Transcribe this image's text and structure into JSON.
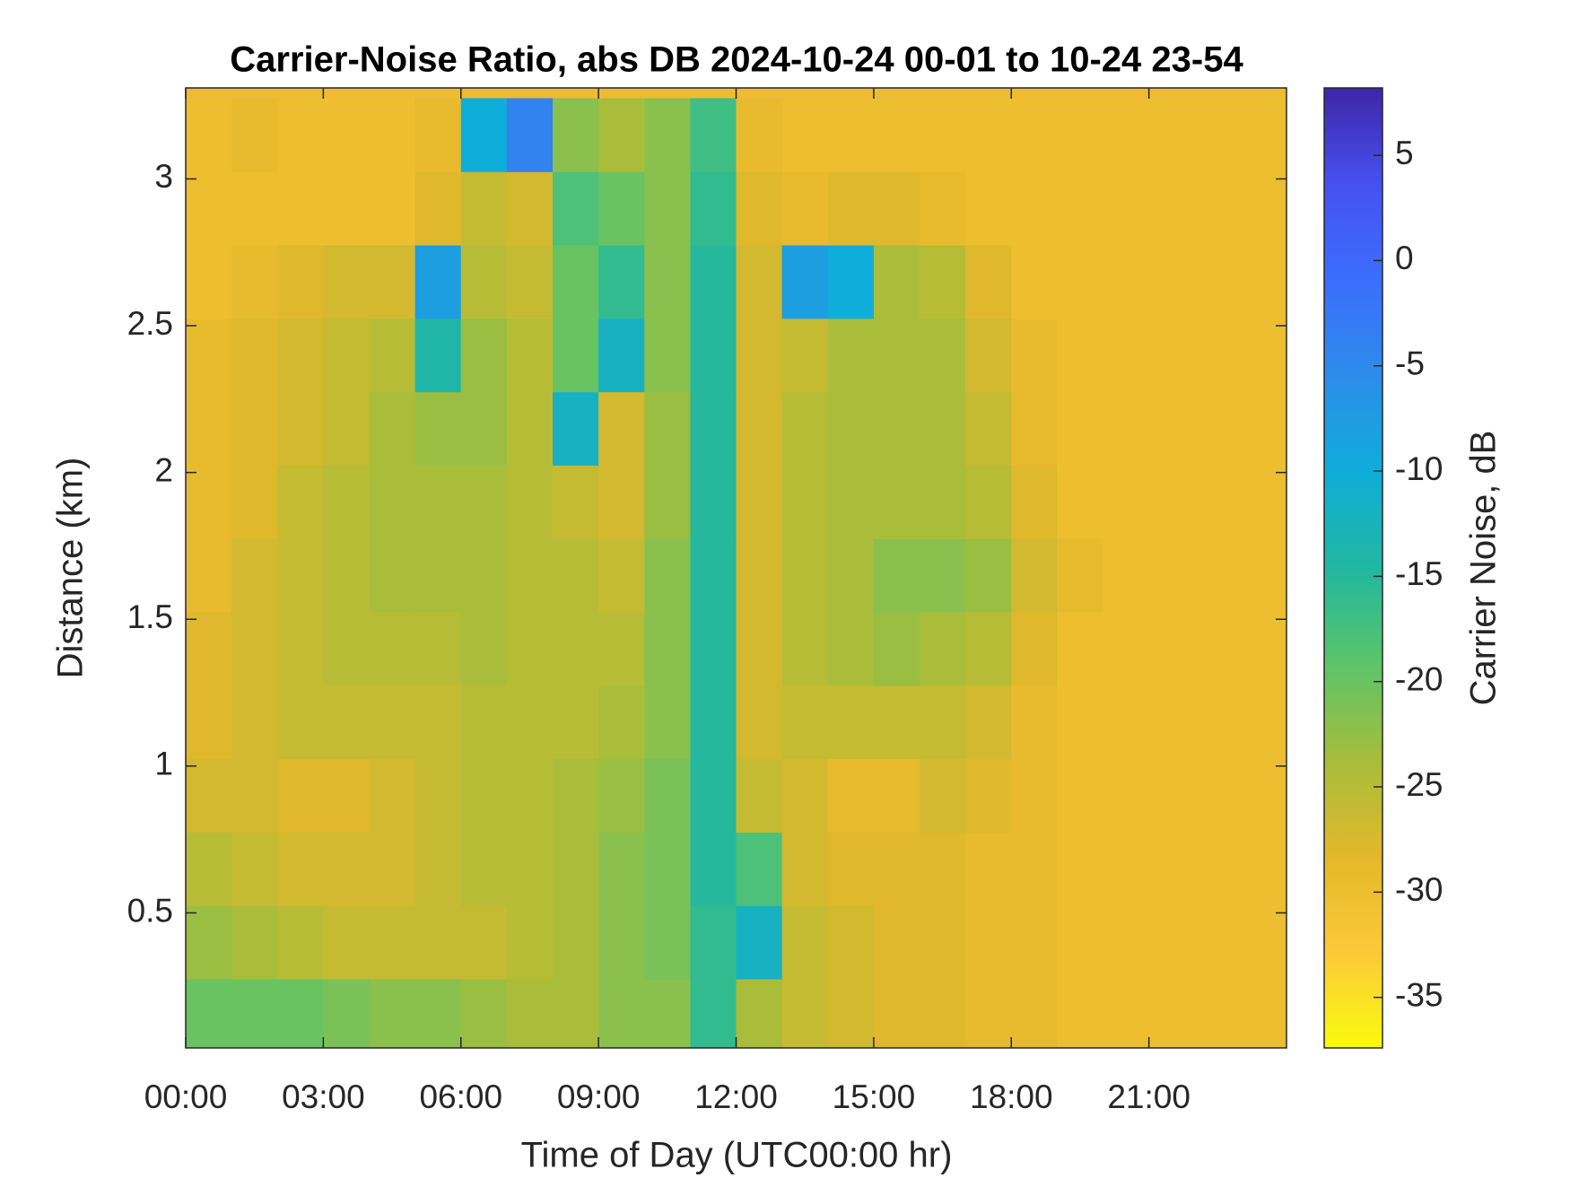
{
  "chart_data": {
    "type": "heatmap",
    "title": "Carrier-Noise Ratio, abs DB 2024-10-24 00-01 to 10-24 23-54",
    "x_label": "Time of Day (UTC00:00 hr)",
    "y_label": "Distance (km)",
    "colorbar_label": "Carrier Noise, dB",
    "x": [
      0.5,
      1.5,
      2.5,
      3.5,
      4.5,
      5.5,
      6.5,
      7.5,
      8.5,
      9.5,
      10.5,
      11.5,
      12.5,
      13.5,
      14.5,
      15.5,
      16.5,
      17.5,
      18.5,
      19.5,
      20.5,
      21.5,
      22.5,
      23.5
    ],
    "y": [
      0.15,
      0.4,
      0.65,
      0.9,
      1.15,
      1.4,
      1.65,
      1.9,
      2.15,
      2.4,
      2.65,
      2.9,
      3.15
    ],
    "z": [
      [
        -20,
        -20,
        -20,
        -21,
        -22,
        -22,
        -23,
        -24,
        -24,
        -22,
        -22,
        -16,
        -24,
        -26,
        -27,
        -28,
        -28,
        -29,
        -29,
        -30,
        -30,
        -30,
        -30,
        -30
      ],
      [
        -23,
        -24,
        -25,
        -26,
        -26,
        -26,
        -26,
        -25,
        -24,
        -22,
        -21,
        -16,
        -12,
        -26,
        -27,
        -28,
        -28,
        -29,
        -29,
        -30,
        -30,
        -30,
        -30,
        -30
      ],
      [
        -25,
        -26,
        -27,
        -27,
        -27,
        -26,
        -25,
        -25,
        -24,
        -22,
        -21,
        -15,
        -18,
        -27,
        -28,
        -28,
        -28,
        -29,
        -29,
        -30,
        -30,
        -30,
        -30,
        -30
      ],
      [
        -27,
        -27,
        -28,
        -28,
        -27,
        -26,
        -25,
        -25,
        -24,
        -23,
        -21,
        -15,
        -26,
        -27,
        -29,
        -29,
        -27,
        -28,
        -29,
        -30,
        -30,
        -30,
        -30,
        -30
      ],
      [
        -28,
        -27,
        -26,
        -26,
        -26,
        -26,
        -25,
        -25,
        -25,
        -24,
        -22,
        -15,
        -27,
        -26,
        -26,
        -26,
        -26,
        -27,
        -29,
        -30,
        -30,
        -30,
        -30,
        -30
      ],
      [
        -28,
        -27,
        -26,
        -25,
        -25,
        -25,
        -24,
        -25,
        -25,
        -25,
        -22,
        -15,
        -27,
        -25,
        -24,
        -23,
        -24,
        -25,
        -28,
        -30,
        -30,
        -30,
        -30,
        -30
      ],
      [
        -29,
        -27,
        -26,
        -25,
        -24,
        -24,
        -24,
        -25,
        -25,
        -26,
        -22,
        -15,
        -27,
        -25,
        -24,
        -22,
        -22,
        -23,
        -27,
        -29,
        -30,
        -30,
        -30,
        -30
      ],
      [
        -29,
        -28,
        -26,
        -25,
        -24,
        -24,
        -24,
        -25,
        -26,
        -27,
        -23,
        -15,
        -27,
        -25,
        -24,
        -24,
        -24,
        -25,
        -28,
        -30,
        -30,
        -30,
        -30,
        -30
      ],
      [
        -29,
        -28,
        -27,
        -26,
        -24,
        -23,
        -23,
        -25,
        -12,
        -27,
        -23,
        -15,
        -27,
        -25,
        -24,
        -24,
        -24,
        -26,
        -29,
        -30,
        -30,
        -30,
        -30,
        -30
      ],
      [
        -29,
        -28,
        -27,
        -26,
        -25,
        -14,
        -23,
        -25,
        -20,
        -12,
        -22,
        -15,
        -27,
        -26,
        -24,
        -24,
        -24,
        -27,
        -29,
        -30,
        -30,
        -30,
        -30,
        -30
      ],
      [
        -30,
        -29,
        -28,
        -27,
        -27,
        -8,
        -25,
        -26,
        -20,
        -16,
        -22,
        -15,
        -27,
        -8,
        -10,
        -24,
        -25,
        -28,
        -30,
        -30,
        -30,
        -30,
        -30,
        -30
      ],
      [
        -30,
        -30,
        -30,
        -30,
        -30,
        -28,
        -26,
        -27,
        -18,
        -20,
        -22,
        -16,
        -28,
        -29,
        -28,
        -28,
        -29,
        -30,
        -30,
        -30,
        -30,
        -30,
        -30,
        -30
      ],
      [
        -30,
        -29,
        -30,
        -30,
        -30,
        -29,
        -10,
        -4,
        -22,
        -24,
        -22,
        -17,
        -29,
        -30,
        -30,
        -30,
        -30,
        -30,
        -30,
        -30,
        -30,
        -30,
        -30,
        -30
      ]
    ],
    "xlim": [
      0,
      24
    ],
    "ylim": [
      0.04,
      3.31
    ],
    "clim": [
      -37.4,
      8.2
    ],
    "xticks": [
      {
        "value": 0,
        "label": "00:00"
      },
      {
        "value": 3,
        "label": "03:00"
      },
      {
        "value": 6,
        "label": "06:00"
      },
      {
        "value": 9,
        "label": "09:00"
      },
      {
        "value": 12,
        "label": "12:00"
      },
      {
        "value": 15,
        "label": "15:00"
      },
      {
        "value": 18,
        "label": "18:00"
      },
      {
        "value": 21,
        "label": "21:00"
      }
    ],
    "yticks": [
      0.5,
      1,
      1.5,
      2,
      2.5,
      3
    ],
    "cticks": [
      5,
      0,
      -5,
      -10,
      -15,
      -20,
      -25,
      -30,
      -35
    ],
    "colormap": [
      "#f9fb0e",
      "#fcc93a",
      "#e3b82a",
      "#a6bd3b",
      "#5cc46a",
      "#21b7a1",
      "#0fadd9",
      "#2d8ceb",
      "#3b6efb",
      "#4651f0",
      "#3e26a8"
    ]
  }
}
